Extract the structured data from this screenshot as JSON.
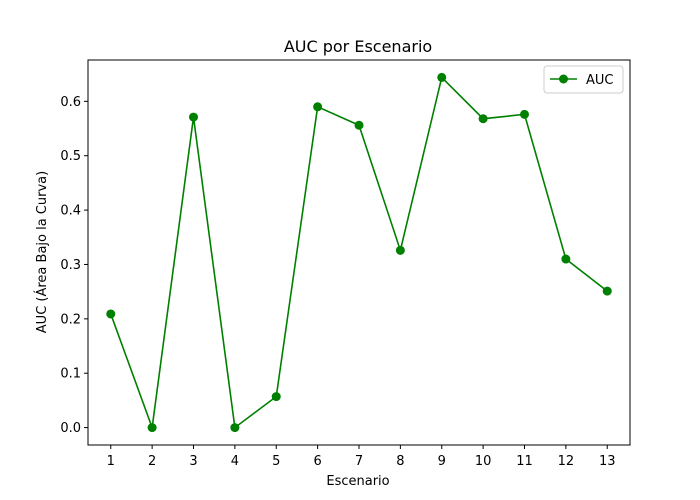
{
  "chart_data": {
    "type": "line",
    "title": "AUC por Escenario",
    "xlabel": "Escenario",
    "ylabel": "AUC (Área Bajo la Curva)",
    "x": [
      1,
      2,
      3,
      4,
      5,
      6,
      7,
      8,
      9,
      10,
      11,
      12,
      13
    ],
    "xticks": [
      "1",
      "2",
      "3",
      "4",
      "5",
      "6",
      "7",
      "8",
      "9",
      "10",
      "11",
      "12",
      "13"
    ],
    "yticks": [
      "0.0",
      "0.1",
      "0.2",
      "0.3",
      "0.4",
      "0.5",
      "0.6"
    ],
    "xlim": [
      0.45,
      13.55
    ],
    "ylim": [
      -0.032,
      0.676
    ],
    "grid": false,
    "legend_position": "top-right",
    "series": [
      {
        "name": "AUC",
        "color": "#008000",
        "marker": "circle",
        "values": [
          0.209,
          0.0,
          0.571,
          0.0,
          0.057,
          0.59,
          0.556,
          0.326,
          0.644,
          0.568,
          0.576,
          0.31,
          0.251
        ]
      }
    ]
  }
}
